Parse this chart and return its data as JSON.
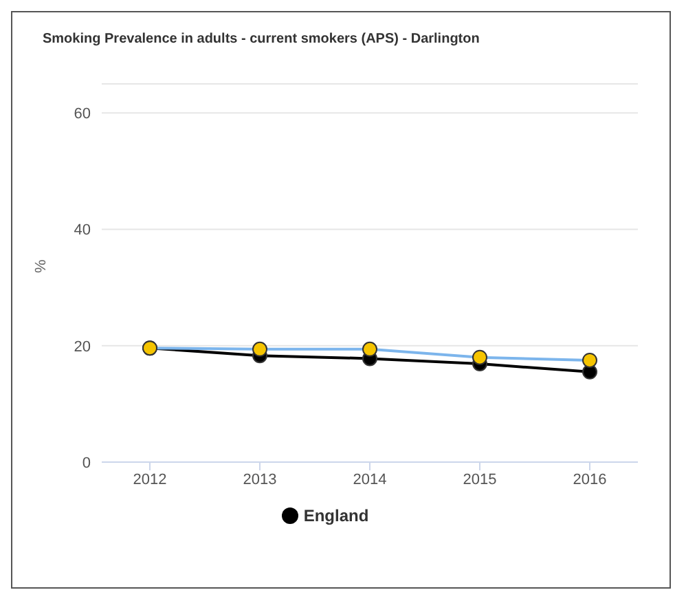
{
  "chart_data": {
    "type": "line",
    "title": "Smoking Prevalence in adults - current smokers (APS) - Darlington",
    "ylabel": "%",
    "categories": [
      "2012",
      "2013",
      "2014",
      "2015",
      "2016"
    ],
    "series": [
      {
        "color": "#7cb5ec",
        "colors": [
          "#f5c400",
          "#f5c400",
          "#f5c400",
          "#f5c400",
          "#f5c400"
        ],
        "values": [
          19.6,
          19.4,
          19.4,
          18.0,
          17.5
        ]
      },
      {
        "name": "England",
        "color": "#000000",
        "values": [
          19.6,
          18.3,
          17.8,
          16.9,
          15.5
        ]
      }
    ],
    "ylim": [
      0,
      65
    ],
    "yticks": [
      0,
      20,
      40,
      60
    ],
    "grid": "y",
    "legend": "bottom",
    "marker": "circle",
    "line_style": "solid"
  }
}
